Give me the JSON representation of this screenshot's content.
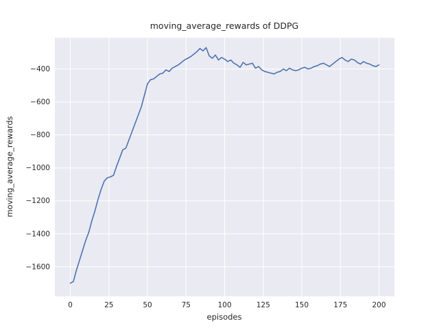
{
  "chart_data": {
    "type": "line",
    "title": "moving_average_rewards of DDPG",
    "xlabel": "episodes",
    "ylabel": "moving_average_rewards",
    "xlim": [
      -10,
      210
    ],
    "ylim": [
      -1780,
      -210
    ],
    "xticks": [
      0,
      25,
      50,
      75,
      100,
      125,
      150,
      175,
      200
    ],
    "yticks": [
      -1600,
      -1400,
      -1200,
      -1000,
      -800,
      -600,
      -400
    ],
    "grid": true,
    "legend_position": "none",
    "line_color": "#4c72b0",
    "plot_background_color": "#eaeaf2",
    "gridline_color": "#ffffff",
    "series": [
      {
        "name": "moving_average_rewards",
        "x": [
          0,
          2,
          4,
          6,
          8,
          10,
          12,
          14,
          16,
          18,
          20,
          22,
          24,
          26,
          28,
          30,
          32,
          34,
          36,
          38,
          40,
          42,
          44,
          46,
          48,
          50,
          52,
          54,
          56,
          58,
          60,
          62,
          64,
          66,
          68,
          70,
          72,
          74,
          76,
          78,
          80,
          82,
          84,
          86,
          88,
          90,
          92,
          94,
          96,
          98,
          100,
          102,
          104,
          106,
          108,
          110,
          112,
          114,
          116,
          118,
          120,
          122,
          124,
          126,
          128,
          130,
          132,
          134,
          136,
          138,
          140,
          142,
          144,
          146,
          148,
          150,
          152,
          154,
          156,
          158,
          160,
          162,
          164,
          166,
          168,
          170,
          172,
          174,
          176,
          178,
          180,
          182,
          184,
          186,
          188,
          190,
          192,
          194,
          196,
          198,
          200
        ],
        "y": [
          -1700,
          -1690,
          -1620,
          -1560,
          -1500,
          -1440,
          -1390,
          -1320,
          -1260,
          -1190,
          -1130,
          -1080,
          -1060,
          -1055,
          -1045,
          -990,
          -940,
          -890,
          -880,
          -830,
          -780,
          -730,
          -680,
          -630,
          -560,
          -490,
          -465,
          -460,
          -445,
          -430,
          -425,
          -405,
          -415,
          -395,
          -385,
          -375,
          -360,
          -345,
          -335,
          -325,
          -310,
          -295,
          -275,
          -290,
          -270,
          -320,
          -335,
          -315,
          -345,
          -330,
          -340,
          -355,
          -345,
          -365,
          -375,
          -390,
          -360,
          -375,
          -370,
          -365,
          -395,
          -385,
          -405,
          -415,
          -420,
          -425,
          -430,
          -420,
          -415,
          -400,
          -410,
          -395,
          -405,
          -410,
          -405,
          -395,
          -390,
          -400,
          -395,
          -385,
          -380,
          -370,
          -365,
          -375,
          -385,
          -370,
          -355,
          -340,
          -330,
          -345,
          -355,
          -340,
          -345,
          -360,
          -370,
          -355,
          -365,
          -370,
          -380,
          -385,
          -375
        ]
      }
    ]
  }
}
